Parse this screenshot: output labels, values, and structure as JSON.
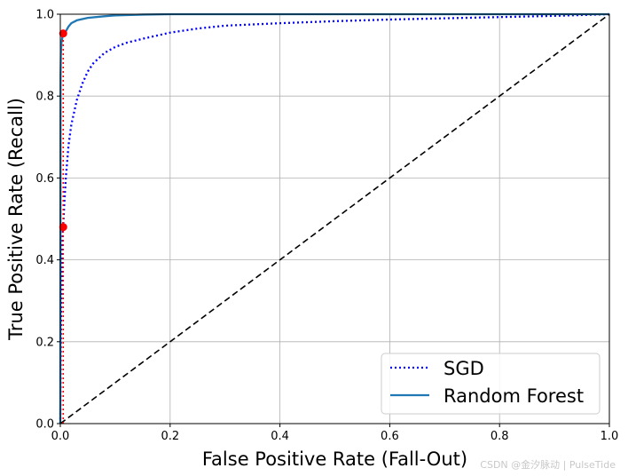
{
  "chart_data": {
    "type": "line",
    "title": "",
    "xlabel": "False Positive Rate (Fall-Out)",
    "ylabel": "True Positive Rate (Recall)",
    "xlim": [
      0,
      1
    ],
    "ylim": [
      0,
      1
    ],
    "xticks": [
      "0.0",
      "0.2",
      "0.4",
      "0.6",
      "0.8",
      "1.0"
    ],
    "yticks": [
      "0.0",
      "0.2",
      "0.4",
      "0.6",
      "0.8",
      "1.0"
    ],
    "grid": true,
    "legend_position": "lower-right",
    "series": [
      {
        "name": "SGD",
        "color": "#0000ff",
        "style": "dotted",
        "x": [
          0,
          0.001,
          0.002,
          0.003,
          0.005,
          0.007,
          0.01,
          0.015,
          0.02,
          0.03,
          0.04,
          0.05,
          0.06,
          0.08,
          0.1,
          0.12,
          0.15,
          0.2,
          0.25,
          0.3,
          0.4,
          0.5,
          0.6,
          0.7,
          0.8,
          0.9,
          1.0
        ],
        "y": [
          0,
          0.2,
          0.33,
          0.42,
          0.48,
          0.53,
          0.6,
          0.68,
          0.73,
          0.79,
          0.83,
          0.86,
          0.88,
          0.905,
          0.92,
          0.93,
          0.94,
          0.955,
          0.965,
          0.972,
          0.978,
          0.983,
          0.987,
          0.99,
          0.993,
          0.996,
          1.0
        ]
      },
      {
        "name": "Random Forest",
        "color": "#1f77b4",
        "style": "solid",
        "x": [
          0,
          0.0005,
          0.001,
          0.002,
          0.004,
          0.006,
          0.01,
          0.015,
          0.02,
          0.03,
          0.05,
          0.08,
          0.1,
          0.15,
          0.2,
          0.4,
          0.6,
          0.8,
          1.0
        ],
        "y": [
          0,
          0.85,
          0.9,
          0.93,
          0.945,
          0.952,
          0.958,
          0.97,
          0.978,
          0.985,
          0.991,
          0.995,
          0.997,
          0.999,
          1.0,
          1.0,
          1.0,
          1.0,
          1.0
        ]
      },
      {
        "name": "",
        "color": "#000000",
        "style": "dashed",
        "x": [
          0,
          1
        ],
        "y": [
          0,
          1
        ]
      }
    ],
    "markers": [
      {
        "x": 0.0053,
        "y": 0.48,
        "color": "#ff0000"
      },
      {
        "x": 0.0053,
        "y": 0.953,
        "color": "#ff0000"
      }
    ],
    "reference_lines": [
      {
        "x": 0.0053,
        "y_from": 0,
        "y_to": 0.953,
        "color": "#ff0000",
        "style": "dotted"
      }
    ],
    "legend": [
      "SGD",
      "Random Forest"
    ]
  },
  "watermark": "CSDN @金汐脉动 | PulseTide"
}
